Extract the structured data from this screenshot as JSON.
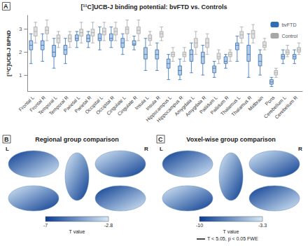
{
  "chart_data": [
    {
      "type": "boxplot",
      "panel": "A",
      "title": "[¹¹C]UCB-J binding potential: bvFTD vs. Controls",
      "y_label": "[¹¹C]UCB-J BPND",
      "categories": [
        "Frontal L",
        "Frontal R",
        "Temporal L",
        "Temporal R",
        "Parietal L",
        "Parietal R",
        "Occipital L",
        "Occipital R",
        "Cingulate L",
        "Cingulate R",
        "Insula L",
        "Insula R",
        "Hippocampus L",
        "Hippocampus R",
        "Amygdala L",
        "Amygdala R",
        "Pallidum L",
        "Pallidum R",
        "Thalamus L",
        "Thalamus R",
        "Midbrain",
        "Pons",
        "Cerebellum L",
        "Cerebellum R"
      ],
      "series": [
        {
          "name": "bvFTD",
          "color": "#2e6db4",
          "values": [
            [
              1.5,
              2.1,
              2.3,
              2.5,
              2.8
            ],
            [
              1.6,
              2.1,
              2.3,
              2.5,
              2.8
            ],
            [
              1.3,
              1.8,
              2.0,
              2.3,
              2.6
            ],
            [
              1.5,
              1.9,
              2.1,
              2.3,
              2.6
            ],
            [
              2.2,
              2.5,
              2.6,
              2.75,
              2.9
            ],
            [
              2.2,
              2.45,
              2.6,
              2.75,
              2.9
            ],
            [
              2.1,
              2.5,
              2.6,
              2.8,
              3.1
            ],
            [
              2.2,
              2.5,
              2.6,
              2.8,
              3.1
            ],
            [
              1.9,
              2.2,
              2.4,
              2.6,
              2.8
            ],
            [
              2.1,
              2.3,
              2.35,
              2.5,
              2.7
            ],
            [
              1.2,
              1.7,
              1.9,
              2.2,
              2.6
            ],
            [
              1.2,
              1.7,
              1.9,
              2.1,
              2.4
            ],
            [
              0.8,
              1.3,
              1.5,
              1.7,
              1.9
            ],
            [
              0.8,
              1.0,
              1.2,
              1.4,
              1.7
            ],
            [
              1.1,
              1.6,
              1.9,
              2.1,
              2.4
            ],
            [
              1.0,
              1.5,
              1.8,
              2.0,
              2.3
            ],
            [
              0.9,
              1.1,
              1.3,
              1.4,
              1.6
            ],
            [
              1.3,
              1.5,
              1.6,
              1.8,
              1.9
            ],
            [
              1.6,
              2.1,
              2.3,
              2.4,
              2.7
            ],
            [
              0.9,
              1.6,
              1.9,
              2.3,
              2.8
            ],
            [
              1.0,
              1.4,
              1.6,
              1.9,
              2.1
            ],
            [
              0.5,
              0.6,
              0.7,
              0.8,
              0.9
            ],
            [
              1.5,
              1.7,
              1.8,
              1.9,
              2.1
            ],
            [
              1.5,
              1.7,
              1.8,
              1.9,
              2.1
            ]
          ]
        },
        {
          "name": "Control",
          "color": "#a6a6a6",
          "values": [
            [
              2.4,
              2.7,
              2.9,
              3.1,
              3.3
            ],
            [
              2.5,
              2.8,
              2.95,
              3.1,
              3.4
            ],
            [
              2.2,
              2.4,
              2.6,
              2.75,
              2.9
            ],
            [
              2.2,
              2.45,
              2.6,
              2.75,
              2.9
            ],
            [
              2.4,
              2.7,
              2.85,
              3.0,
              3.3
            ],
            [
              2.4,
              2.7,
              2.85,
              3.0,
              3.3
            ],
            [
              2.5,
              2.75,
              2.9,
              3.05,
              3.3
            ],
            [
              2.5,
              2.75,
              2.9,
              3.05,
              3.3
            ],
            [
              2.5,
              2.8,
              3.0,
              3.1,
              3.4
            ],
            [
              2.5,
              2.8,
              2.95,
              3.1,
              3.4
            ],
            [
              2.3,
              2.5,
              2.6,
              2.75,
              2.9
            ],
            [
              2.5,
              2.65,
              2.8,
              2.9,
              3.1
            ],
            [
              1.6,
              1.8,
              1.9,
              2.0,
              2.2
            ],
            [
              1.6,
              1.8,
              1.9,
              2.0,
              2.2
            ],
            [
              1.9,
              2.2,
              2.4,
              2.6,
              2.9
            ],
            [
              1.9,
              2.2,
              2.4,
              2.6,
              2.8
            ],
            [
              1.5,
              1.7,
              1.8,
              1.95,
              2.1
            ],
            [
              1.6,
              1.8,
              1.9,
              2.0,
              2.1
            ],
            [
              2.4,
              2.6,
              2.75,
              2.9,
              3.1
            ],
            [
              2.4,
              2.6,
              2.8,
              2.95,
              3.2
            ],
            [
              2.1,
              2.2,
              2.3,
              2.45,
              2.6
            ],
            [
              0.9,
              1.0,
              1.1,
              1.2,
              1.3
            ],
            [
              1.8,
              1.9,
              2.0,
              2.1,
              2.3
            ],
            [
              1.9,
              2.0,
              2.1,
              2.2,
              2.4
            ]
          ]
        }
      ],
      "ylim": [
        0.3,
        3.6
      ],
      "yticks": [
        1,
        2,
        3
      ],
      "legend": "upper right",
      "grid": false
    },
    {
      "type": "brain_map",
      "panel": "B",
      "title": "Regional group comparison",
      "hemisphere_labels": [
        "L",
        "R"
      ],
      "colorbar": {
        "label": "T value",
        "range": [
          -7,
          -2.8
        ],
        "ticks": [
          -7,
          -2.8
        ],
        "colors": [
          "#0b3d91",
          "#d6e8f7"
        ]
      }
    },
    {
      "type": "brain_map",
      "panel": "C",
      "title": "Voxel-wise group comparison",
      "hemisphere_labels": [
        "L",
        "R"
      ],
      "annotation": "T < 5.05, p < 0.05 FWE",
      "colorbar": {
        "label": "T value",
        "range": [
          -10,
          -3.3
        ],
        "ticks": [
          -10,
          -3.3
        ],
        "colors": [
          "#0b3d91",
          "#d6e8f7"
        ]
      }
    }
  ]
}
